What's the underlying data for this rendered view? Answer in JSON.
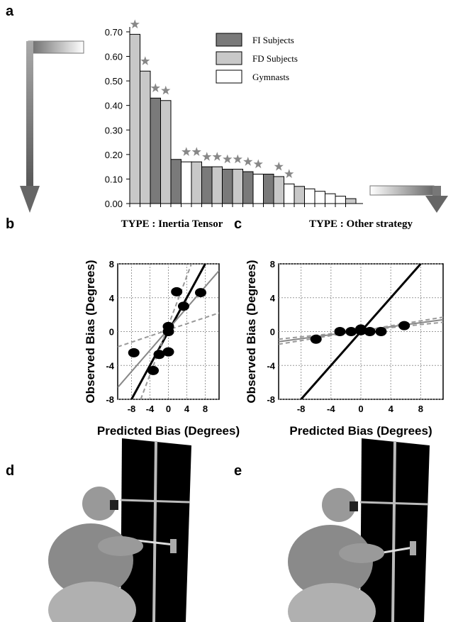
{
  "panel_labels": [
    "a",
    "b",
    "c",
    "d",
    "e"
  ],
  "chart_data": [
    {
      "type": "bar",
      "categories": [
        null,
        null,
        null,
        null,
        null,
        null,
        null,
        null,
        null,
        null,
        null,
        null,
        null,
        null,
        null,
        null,
        null,
        null,
        null,
        null,
        null,
        null
      ],
      "series": [
        {
          "name": "FI Subjects",
          "color": "#7a7a7a",
          "values": [
            null,
            null,
            0.43,
            null,
            0.18,
            null,
            null,
            0.15,
            null,
            0.14,
            null,
            0.13,
            null,
            0.12,
            null,
            null,
            null,
            null,
            null,
            null,
            null,
            null
          ]
        },
        {
          "name": "FD Subjects",
          "color": "#c8c8c8",
          "values": [
            0.69,
            0.54,
            null,
            0.42,
            null,
            null,
            0.17,
            null,
            0.15,
            null,
            0.14,
            null,
            null,
            null,
            0.11,
            null,
            0.07,
            null,
            null,
            null,
            null,
            0.02
          ]
        },
        {
          "name": "Gymnasts",
          "color": "#ffffff",
          "values": [
            null,
            null,
            null,
            null,
            null,
            0.17,
            null,
            null,
            null,
            null,
            null,
            null,
            0.12,
            null,
            null,
            0.08,
            null,
            0.06,
            0.05,
            0.04,
            0.03,
            null
          ]
        }
      ],
      "starred": [
        true,
        true,
        true,
        true,
        false,
        true,
        true,
        true,
        true,
        true,
        true,
        true,
        true,
        false,
        true,
        true,
        false,
        false,
        false,
        false,
        false,
        false
      ],
      "ylim": [
        0,
        0.72
      ],
      "yticks": [
        {
          "value": 0,
          "label": "0.00"
        },
        {
          "value": 0.1,
          "label": "0.10"
        },
        {
          "value": 0.2,
          "label": "0.20"
        },
        {
          "value": 0.3,
          "label": "0.30"
        },
        {
          "value": 0.4,
          "label": "0.40"
        },
        {
          "value": 0.5,
          "label": "0.50"
        },
        {
          "value": 0.6,
          "label": "0.60"
        },
        {
          "value": 0.7,
          "label": "0.70"
        }
      ]
    },
    {
      "type": "scatter",
      "title": "TYPE : Inertia Tensor",
      "xlabel": "Predicted Bias  (Degrees)",
      "ylabel": "Observed Bias  (Degrees)",
      "xlim": [
        -11,
        11
      ],
      "ylim": [
        -8,
        8
      ],
      "xticks": [
        -8,
        -4,
        0,
        4,
        8
      ],
      "yticks": [
        -8,
        -4,
        0,
        4,
        8
      ],
      "grid": true,
      "series": [
        {
          "mode": "markers",
          "color": "#000000",
          "x": [
            -7.5,
            -3.3,
            -2,
            0,
            0,
            0,
            1.8,
            3.3,
            7
          ],
          "values": [
            -2.5,
            -4.6,
            -2.7,
            0.6,
            0,
            -2.4,
            4.7,
            3,
            4.6
          ]
        },
        {
          "mode": "solid",
          "color": "#000000",
          "x": [
            -8,
            8
          ],
          "values": [
            -8,
            8
          ]
        },
        {
          "mode": "solid",
          "color": "#888888",
          "x": [
            -11,
            11
          ],
          "values": [
            -6.6,
            7.2
          ]
        },
        {
          "mode": "dashed",
          "color": "#999999",
          "x": [
            -11,
            11
          ],
          "values": [
            -1.8,
            2.2
          ]
        },
        {
          "mode": "dashed",
          "color": "#999999",
          "x": [
            -6,
            5
          ],
          "values": [
            -8,
            8
          ]
        }
      ]
    },
    {
      "type": "scatter",
      "title": "TYPE : Other strategy",
      "xlabel": "Predicted Bias  (Degrees)",
      "ylabel": "Observed Bias  (Degrees)",
      "xlim": [
        -11,
        11
      ],
      "ylim": [
        -8,
        8
      ],
      "xticks": [
        -8,
        -4,
        0,
        4,
        8
      ],
      "yticks": [
        -8,
        -4,
        0,
        4,
        8
      ],
      "grid": true,
      "series": [
        {
          "mode": "markers",
          "color": "#000000",
          "x": [
            -6,
            -2.8,
            -1.3,
            0,
            0,
            1.2,
            2.7,
            5.8
          ],
          "values": [
            -0.9,
            0,
            0,
            0.1,
            0.3,
            0,
            0,
            0.7
          ]
        },
        {
          "mode": "solid",
          "color": "#000000",
          "x": [
            -8,
            8
          ],
          "values": [
            -8,
            8
          ]
        },
        {
          "mode": "solid",
          "color": "#888888",
          "x": [
            -11,
            11
          ],
          "values": [
            -1.2,
            1.4
          ]
        },
        {
          "mode": "dashed",
          "color": "#999999",
          "x": [
            -11,
            11
          ],
          "values": [
            -0.9,
            1.1
          ]
        },
        {
          "mode": "dashed",
          "color": "#999999",
          "x": [
            -11,
            11
          ],
          "values": [
            -1.5,
            1.7
          ]
        }
      ]
    }
  ]
}
